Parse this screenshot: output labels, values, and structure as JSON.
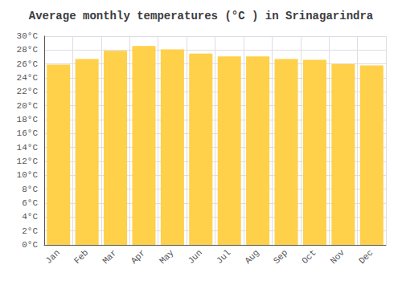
{
  "chart_data": {
    "type": "bar",
    "title": "Average monthly temperatures (°C ) in Srinagarindra",
    "categories": [
      "Jan",
      "Feb",
      "Mar",
      "Apr",
      "May",
      "Jun",
      "Jul",
      "Aug",
      "Sep",
      "Oct",
      "Nov",
      "Dec"
    ],
    "values": [
      25.9,
      26.7,
      27.9,
      28.6,
      28.1,
      27.5,
      27.1,
      27.1,
      26.7,
      26.6,
      26.0,
      25.8
    ],
    "color": "#FFD04A",
    "ylim": [
      0,
      30
    ],
    "yticks": [
      {
        "value": 0,
        "label": "0°C"
      },
      {
        "value": 2,
        "label": "2°C"
      },
      {
        "value": 4,
        "label": "4°C"
      },
      {
        "value": 6,
        "label": "6°C"
      },
      {
        "value": 8,
        "label": "8°C"
      },
      {
        "value": 10,
        "label": "10°C"
      },
      {
        "value": 12,
        "label": "12°C"
      },
      {
        "value": 14,
        "label": "14°C"
      },
      {
        "value": 16,
        "label": "16°C"
      },
      {
        "value": 18,
        "label": "18°C"
      },
      {
        "value": 20,
        "label": "20°C"
      },
      {
        "value": 22,
        "label": "22°C"
      },
      {
        "value": 24,
        "label": "24°C"
      },
      {
        "value": 26,
        "label": "26°C"
      },
      {
        "value": 28,
        "label": "28°C"
      },
      {
        "value": 30,
        "label": "30°C"
      }
    ],
    "grid": true
  }
}
